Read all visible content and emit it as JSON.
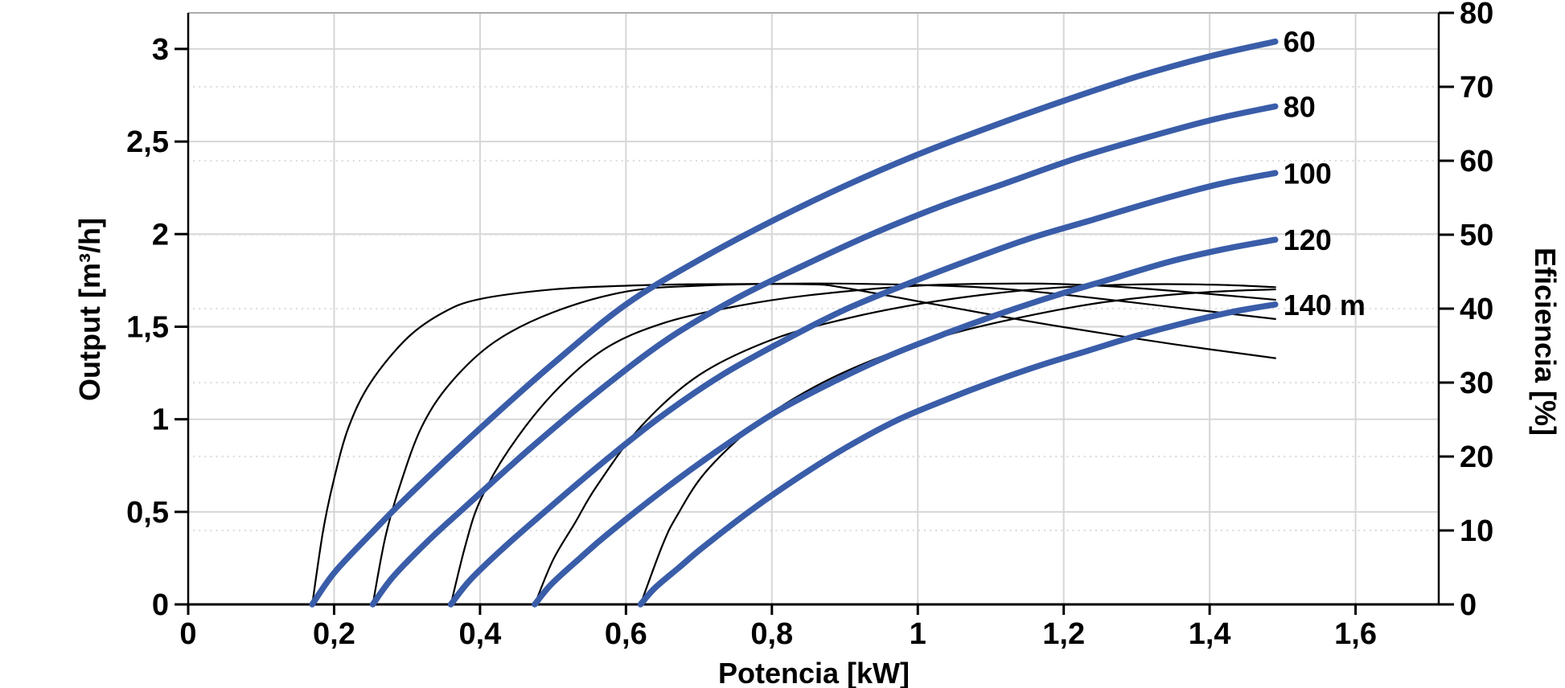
{
  "chart_data": {
    "type": "line",
    "title": "",
    "xlabel": "Potencia [kW]",
    "ylabel_left": "Output [m³/h]",
    "ylabel_right": "Eficiencia [%]",
    "grid": {
      "vertical": "solid",
      "horizontal_left_ticks": "solid",
      "horizontal_right_ticks": "dotted"
    },
    "legend_position": "curve-end-labels",
    "x_axis": {
      "min": 0,
      "max": 1.714,
      "ticks": [
        0,
        0.2,
        0.4,
        0.6,
        0.8,
        1,
        1.2,
        1.4,
        1.6
      ],
      "tick_labels": [
        "0",
        "0,2",
        "0,4",
        "0,6",
        "0,8",
        "1",
        "1,2",
        "1,4",
        "1,6"
      ]
    },
    "y_axis_left": {
      "min": 0,
      "max": 3.195,
      "ticks": [
        0,
        0.5,
        1,
        1.5,
        2,
        2.5,
        3
      ],
      "tick_labels": [
        "0",
        "0,5",
        "1",
        "1,5",
        "2",
        "2,5",
        "3"
      ]
    },
    "y_axis_right": {
      "min": 0,
      "max": 80,
      "ticks": [
        0,
        10,
        20,
        30,
        40,
        50,
        60,
        70,
        80
      ],
      "tick_labels": [
        "0",
        "10",
        "20",
        "30",
        "40",
        "50",
        "60",
        "70",
        "80"
      ]
    },
    "colors": {
      "power_curve": "#3a5da9",
      "efficiency_curve": "#000000",
      "grid_solid": "#d6d6d6",
      "grid_dotted": "#dedede",
      "spine": "#000000",
      "spine_top": "#ababab",
      "text": "#000000",
      "background": "#ffffff"
    },
    "series": [
      {
        "name": "head-60-power",
        "role": "power",
        "head_m": 60,
        "label": "60",
        "axis": "left",
        "points": [
          [
            0.17,
            0
          ],
          [
            0.2,
            0.17
          ],
          [
            0.25,
            0.38
          ],
          [
            0.3,
            0.58
          ],
          [
            0.4,
            0.95
          ],
          [
            0.5,
            1.3
          ],
          [
            0.6,
            1.62
          ],
          [
            0.7,
            1.86
          ],
          [
            0.8,
            2.07
          ],
          [
            0.9,
            2.26
          ],
          [
            1.0,
            2.43
          ],
          [
            1.1,
            2.58
          ],
          [
            1.2,
            2.72
          ],
          [
            1.3,
            2.85
          ],
          [
            1.4,
            2.96
          ],
          [
            1.49,
            3.04
          ]
        ]
      },
      {
        "name": "head-80-power",
        "role": "power",
        "head_m": 80,
        "label": "80",
        "axis": "left",
        "points": [
          [
            0.253,
            0
          ],
          [
            0.281,
            0.15
          ],
          [
            0.328,
            0.34
          ],
          [
            0.375,
            0.51
          ],
          [
            0.468,
            0.84
          ],
          [
            0.562,
            1.15
          ],
          [
            0.656,
            1.43
          ],
          [
            0.75,
            1.65
          ],
          [
            0.843,
            1.83
          ],
          [
            0.937,
            2.0
          ],
          [
            1.031,
            2.15
          ],
          [
            1.124,
            2.28
          ],
          [
            1.218,
            2.41
          ],
          [
            1.312,
            2.52
          ],
          [
            1.406,
            2.62
          ],
          [
            1.49,
            2.69
          ]
        ]
      },
      {
        "name": "head-100-power",
        "role": "power",
        "head_m": 100,
        "label": "100",
        "axis": "left",
        "points": [
          [
            0.36,
            0
          ],
          [
            0.386,
            0.13
          ],
          [
            0.428,
            0.29
          ],
          [
            0.471,
            0.44
          ],
          [
            0.557,
            0.73
          ],
          [
            0.643,
            1.0
          ],
          [
            0.728,
            1.23
          ],
          [
            0.814,
            1.42
          ],
          [
            0.899,
            1.59
          ],
          [
            0.985,
            1.73
          ],
          [
            1.071,
            1.86
          ],
          [
            1.156,
            1.98
          ],
          [
            1.242,
            2.08
          ],
          [
            1.327,
            2.18
          ],
          [
            1.413,
            2.27
          ],
          [
            1.49,
            2.33
          ]
        ]
      },
      {
        "name": "head-120-power",
        "role": "power",
        "head_m": 120,
        "label": "120",
        "axis": "left",
        "points": [
          [
            0.475,
            0
          ],
          [
            0.498,
            0.11
          ],
          [
            0.537,
            0.25
          ],
          [
            0.575,
            0.38
          ],
          [
            0.652,
            0.62
          ],
          [
            0.729,
            0.84
          ],
          [
            0.806,
            1.04
          ],
          [
            0.883,
            1.2
          ],
          [
            0.959,
            1.34
          ],
          [
            1.036,
            1.46
          ],
          [
            1.113,
            1.57
          ],
          [
            1.19,
            1.67
          ],
          [
            1.267,
            1.76
          ],
          [
            1.344,
            1.85
          ],
          [
            1.421,
            1.92
          ],
          [
            1.49,
            1.97
          ]
        ]
      },
      {
        "name": "head-140-power",
        "role": "power",
        "head_m": 140,
        "label": "140 m",
        "axis": "left",
        "points": [
          [
            0.62,
            0
          ],
          [
            0.64,
            0.09
          ],
          [
            0.673,
            0.2
          ],
          [
            0.706,
            0.31
          ],
          [
            0.772,
            0.51
          ],
          [
            0.838,
            0.69
          ],
          [
            0.903,
            0.85
          ],
          [
            0.969,
            0.99
          ],
          [
            1.035,
            1.1
          ],
          [
            1.101,
            1.2
          ],
          [
            1.167,
            1.29
          ],
          [
            1.233,
            1.37
          ],
          [
            1.299,
            1.45
          ],
          [
            1.365,
            1.52
          ],
          [
            1.431,
            1.58
          ],
          [
            1.49,
            1.62
          ]
        ]
      },
      {
        "name": "head-60-efficiency",
        "role": "efficiency",
        "head_m": 60,
        "label": "",
        "axis": "right",
        "points": [
          [
            0.17,
            0
          ],
          [
            0.185,
            10
          ],
          [
            0.2,
            17
          ],
          [
            0.22,
            24
          ],
          [
            0.25,
            30
          ],
          [
            0.3,
            36
          ],
          [
            0.35,
            39.5
          ],
          [
            0.4,
            41.3
          ],
          [
            0.5,
            42.6
          ],
          [
            0.6,
            43.1
          ],
          [
            0.7,
            43.3
          ],
          [
            0.85,
            43.3
          ],
          [
            0.9,
            42.8
          ],
          [
            1.0,
            41.0
          ],
          [
            1.1,
            39.2
          ],
          [
            1.2,
            37.5
          ],
          [
            1.35,
            35.2
          ],
          [
            1.49,
            33.3
          ]
        ]
      },
      {
        "name": "head-80-efficiency",
        "role": "efficiency",
        "head_m": 80,
        "label": "",
        "axis": "right",
        "points": [
          [
            0.253,
            0
          ],
          [
            0.27,
            9
          ],
          [
            0.29,
            16
          ],
          [
            0.32,
            24
          ],
          [
            0.36,
            30
          ],
          [
            0.42,
            35.5
          ],
          [
            0.5,
            39.5
          ],
          [
            0.6,
            42.3
          ],
          [
            0.7,
            43.1
          ],
          [
            0.85,
            43.4
          ],
          [
            1.0,
            43.2
          ],
          [
            1.1,
            42.8
          ],
          [
            1.2,
            41.9
          ],
          [
            1.35,
            40.2
          ],
          [
            1.49,
            38.6
          ]
        ]
      },
      {
        "name": "head-100-efficiency",
        "role": "efficiency",
        "head_m": 100,
        "label": "",
        "axis": "right",
        "points": [
          [
            0.36,
            0
          ],
          [
            0.38,
            8
          ],
          [
            0.4,
            14
          ],
          [
            0.44,
            21
          ],
          [
            0.5,
            28.5
          ],
          [
            0.57,
            34.5
          ],
          [
            0.65,
            38.0
          ],
          [
            0.75,
            40.3
          ],
          [
            0.85,
            41.8
          ],
          [
            1.0,
            43.1
          ],
          [
            1.15,
            43.4
          ],
          [
            1.25,
            43.1
          ],
          [
            1.35,
            42.4
          ],
          [
            1.49,
            41.2
          ]
        ]
      },
      {
        "name": "head-120-efficiency",
        "role": "efficiency",
        "head_m": 120,
        "label": "",
        "axis": "right",
        "points": [
          [
            0.475,
            0
          ],
          [
            0.5,
            6
          ],
          [
            0.53,
            11
          ],
          [
            0.56,
            16
          ],
          [
            0.62,
            24
          ],
          [
            0.7,
            31
          ],
          [
            0.8,
            35.8
          ],
          [
            0.9,
            38.6
          ],
          [
            1.0,
            40.6
          ],
          [
            1.1,
            42.0
          ],
          [
            1.2,
            42.9
          ],
          [
            1.32,
            43.3
          ],
          [
            1.42,
            43.2
          ],
          [
            1.49,
            42.9
          ]
        ]
      },
      {
        "name": "head-140-efficiency",
        "role": "efficiency",
        "head_m": 140,
        "label": "",
        "axis": "right",
        "points": [
          [
            0.62,
            0
          ],
          [
            0.65,
            8
          ],
          [
            0.67,
            12
          ],
          [
            0.71,
            18
          ],
          [
            0.78,
            24.5
          ],
          [
            0.86,
            29.5
          ],
          [
            0.95,
            33.5
          ],
          [
            1.05,
            36.7
          ],
          [
            1.15,
            39.0
          ],
          [
            1.25,
            40.8
          ],
          [
            1.35,
            41.9
          ],
          [
            1.43,
            42.4
          ],
          [
            1.49,
            42.6
          ]
        ]
      }
    ]
  }
}
